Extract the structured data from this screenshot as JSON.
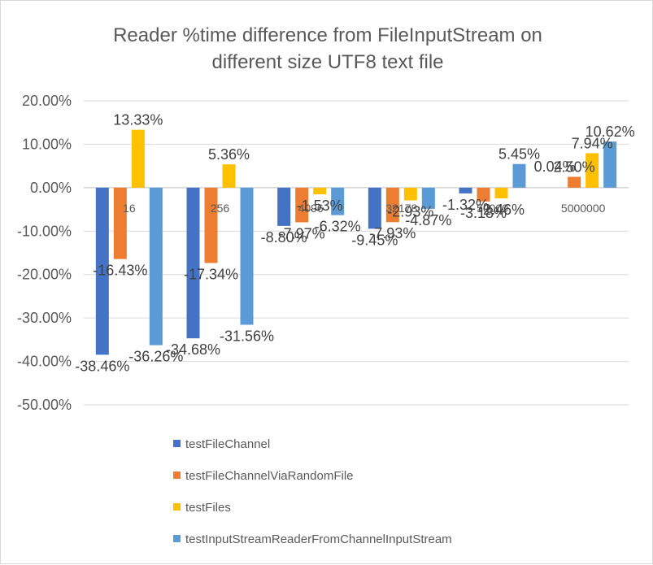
{
  "chart_data": {
    "type": "bar",
    "title_lines": [
      "Reader %time difference from FileInputStream on",
      "different size UTF8 text file"
    ],
    "categories": [
      "16",
      "256",
      "4096",
      "32178",
      "50000",
      "5000000"
    ],
    "ylim": [
      -50,
      20
    ],
    "ytick_labels": [
      "20.00%",
      "10.00%",
      "0.00%",
      "-10.00%",
      "-20.00%",
      "-30.00%",
      "-40.00%",
      "-50.00%"
    ],
    "ytick_values": [
      20,
      10,
      0,
      -10,
      -20,
      -30,
      -40,
      -50
    ],
    "grid": true,
    "legend_position": "bottom",
    "series": [
      {
        "name": "testFileChannel",
        "color": "#4472c4",
        "values": [
          -38.46,
          -34.68,
          -8.8,
          -9.45,
          -1.32,
          null
        ],
        "labels": [
          "-38.46%",
          "-34.68%",
          "-8.80%",
          "-9.45%",
          "-1.32%",
          ""
        ]
      },
      {
        "name": "testFileChannelViaRandomFile",
        "color": "#ed7d31",
        "values": [
          -16.43,
          -17.34,
          -7.97,
          -7.93,
          -3.18,
          2.5
        ],
        "labels": [
          "-16.43%",
          "-17.34%",
          "-7.97%",
          "-7.93%",
          "-3.18%",
          "2.50%"
        ]
      },
      {
        "name": "testFiles",
        "color": "#ffc000",
        "values": [
          13.33,
          5.36,
          -1.53,
          -2.93,
          -2.46,
          7.94
        ],
        "labels": [
          "13.33%",
          "5.36%",
          "-1.53%",
          "-2.93%",
          "-2.46%",
          "7.94%"
        ]
      },
      {
        "name": "testInputStreamReaderFromChannelInputStream",
        "color": "#5b9bd5",
        "values": [
          -36.26,
          -31.56,
          -6.32,
          -4.87,
          5.45,
          10.62
        ],
        "labels": [
          "-36.26%",
          "-31.56%",
          "-6.32%",
          "-4.87%",
          "5.45%",
          "10.62%"
        ]
      }
    ],
    "extra_labels": [
      "0.04%"
    ]
  }
}
